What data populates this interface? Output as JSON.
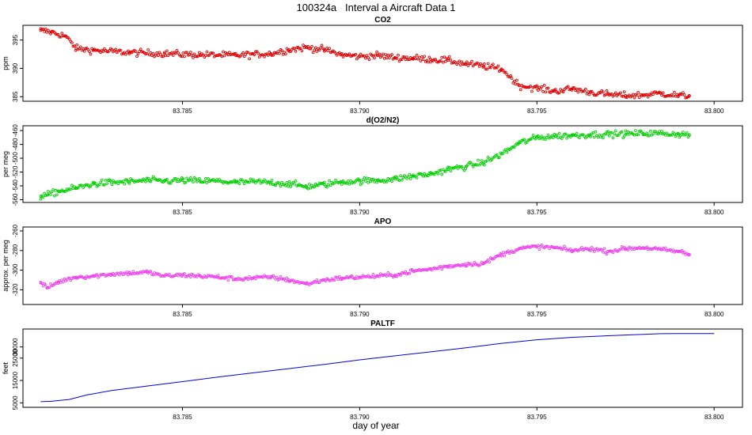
{
  "figure": {
    "title": "100324a   Interval a Aircraft Data 1",
    "xlabel": "day of year"
  },
  "chart_data": [
    {
      "type": "scatter",
      "title": "CO2",
      "ylabel": "ppm",
      "color": "#e00000",
      "xlim": [
        83.7805,
        83.8008
      ],
      "ylim": [
        384.2,
        397.6
      ],
      "xticks": [
        "83.785",
        "83.790",
        "83.795",
        "83.800"
      ],
      "yticks": [
        "385",
        "390",
        "395"
      ],
      "x": [
        83.781,
        83.7813,
        83.7817,
        83.782,
        83.7825,
        83.7835,
        83.7845,
        83.7855,
        83.7865,
        83.7875,
        83.788,
        83.7885,
        83.789,
        83.7895,
        83.79,
        83.7905,
        83.791,
        83.7915,
        83.792,
        83.7925,
        83.793,
        83.7935,
        83.794,
        83.7945,
        83.795,
        83.7955,
        83.796,
        83.7965,
        83.797,
        83.7975,
        83.798,
        83.7985,
        83.799,
        83.7993
      ],
      "y": [
        396.7,
        396.4,
        395.7,
        393.5,
        393.2,
        392.8,
        392.6,
        392.4,
        392.3,
        392.6,
        393.3,
        393.7,
        393.3,
        392.4,
        392.1,
        392.3,
        391.9,
        391.8,
        391.6,
        391.4,
        390.8,
        390.4,
        389.9,
        387.0,
        386.5,
        386.0,
        386.4,
        385.8,
        385.4,
        385.2,
        385.3,
        385.6,
        385.2,
        385.1
      ]
    },
    {
      "type": "scatter",
      "title": "d(O2/N2)",
      "ylabel": "per meg",
      "color": "#00d000",
      "xlim": [
        83.7805,
        83.8008
      ],
      "ylim": [
        -564,
        -453
      ],
      "xticks": [
        "83.785",
        "83.790",
        "83.795",
        "83.800"
      ],
      "yticks": [
        "-560",
        "-540",
        "-520",
        "-500",
        "-480",
        "-460"
      ],
      "x": [
        83.781,
        83.7812,
        83.7815,
        83.782,
        83.7825,
        83.783,
        83.7835,
        83.784,
        83.7845,
        83.785,
        83.7855,
        83.786,
        83.7865,
        83.787,
        83.7875,
        83.788,
        83.7885,
        83.789,
        83.7895,
        83.79,
        83.7905,
        83.791,
        83.7915,
        83.792,
        83.7925,
        83.793,
        83.7935,
        83.794,
        83.7945,
        83.795,
        83.7955,
        83.796,
        83.7965,
        83.797,
        83.7975,
        83.798,
        83.7985,
        83.799,
        83.7993
      ],
      "y": [
        -555,
        -553,
        -548,
        -543,
        -537,
        -535,
        -534,
        -532,
        -533,
        -532,
        -533,
        -533,
        -535,
        -534,
        -535,
        -537,
        -541,
        -538,
        -534,
        -533,
        -532,
        -530,
        -526,
        -523,
        -516,
        -512,
        -506,
        -494,
        -478,
        -470,
        -468,
        -467,
        -466,
        -465,
        -465,
        -464,
        -464,
        -465,
        -466
      ]
    },
    {
      "type": "scatter",
      "title": "APO",
      "ylabel": "approx. per meg",
      "color": "#ee44ee",
      "xlim": [
        83.7805,
        83.8008
      ],
      "ylim": [
        -335,
        -256
      ],
      "xticks": [
        "83.785",
        "83.790",
        "83.795",
        "83.800"
      ],
      "yticks": [
        "-320",
        "-300",
        "-280",
        "-260"
      ],
      "x": [
        83.781,
        83.7812,
        83.7815,
        83.782,
        83.7825,
        83.783,
        83.7835,
        83.784,
        83.7845,
        83.785,
        83.7855,
        83.786,
        83.7865,
        83.787,
        83.7875,
        83.788,
        83.7885,
        83.789,
        83.7895,
        83.79,
        83.7905,
        83.791,
        83.7915,
        83.792,
        83.7925,
        83.793,
        83.7935,
        83.794,
        83.7945,
        83.795,
        83.7955,
        83.796,
        83.7965,
        83.797,
        83.7975,
        83.798,
        83.7985,
        83.799,
        83.7993
      ],
      "y": [
        -313,
        -318,
        -312,
        -307,
        -306,
        -304,
        -303,
        -302,
        -306,
        -305,
        -306,
        -307,
        -309,
        -308,
        -307,
        -310,
        -314,
        -310,
        -308,
        -307,
        -306,
        -305,
        -301,
        -299,
        -296,
        -294,
        -293,
        -284,
        -278,
        -276,
        -277,
        -280,
        -278,
        -281,
        -278,
        -277,
        -279,
        -281,
        -284
      ]
    },
    {
      "type": "line",
      "title": "PALTF",
      "ylabel": "feet",
      "color": "#0000dd",
      "xlim": [
        83.7805,
        83.8008
      ],
      "ylim": [
        3000,
        38000
      ],
      "xticks": [
        "83.785",
        "83.790",
        "83.795",
        "83.800"
      ],
      "yticks": [
        "5000",
        "15000",
        "25000",
        "30000"
      ],
      "x": [
        83.781,
        83.7813,
        83.7818,
        83.7823,
        83.783,
        83.784,
        83.785,
        83.786,
        83.787,
        83.788,
        83.789,
        83.79,
        83.791,
        83.792,
        83.793,
        83.794,
        83.795,
        83.796,
        83.797,
        83.798,
        83.7985,
        83.799,
        83.8
      ],
      "y": [
        5500,
        5700,
        6500,
        8500,
        10500,
        12500,
        14500,
        16500,
        18400,
        20300,
        22200,
        24200,
        26000,
        27800,
        29600,
        31600,
        33200,
        34300,
        35000,
        35600,
        35900,
        35950,
        36000
      ]
    }
  ]
}
